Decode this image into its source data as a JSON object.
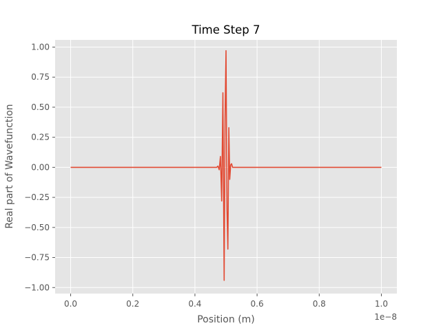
{
  "chart_data": {
    "type": "line",
    "title": "Time Step 7",
    "xlabel": "Position (m)",
    "ylabel": "Real part of Wavefunction",
    "x_offset_label": "1e−8",
    "xlim": [
      -0.05,
      1.05
    ],
    "ylim": [
      -1.05,
      1.06
    ],
    "x_ticks": [
      0.0,
      0.2,
      0.4,
      0.6,
      0.8,
      1.0
    ],
    "x_tick_labels": [
      "0.0",
      "0.2",
      "0.4",
      "0.6",
      "0.8",
      "1.0"
    ],
    "y_ticks": [
      1.0,
      0.75,
      0.5,
      0.25,
      0.0,
      -0.25,
      -0.5,
      -0.75,
      -1.0
    ],
    "y_tick_labels": [
      "1.00",
      "0.75",
      "0.50",
      "0.25",
      "0.00",
      "−0.25",
      "−0.50",
      "−0.75",
      "−1.00"
    ],
    "grid": true,
    "style": "ggplot",
    "colors": {
      "line": "#E24A33",
      "background": "#E5E5E5",
      "grid": "#FFFFFF",
      "text": "#555555"
    },
    "series": [
      {
        "x": [
          0.0,
          0.46,
          0.47,
          0.474,
          0.478,
          0.482,
          0.486,
          0.49,
          0.494,
          0.497,
          0.5,
          0.503,
          0.506,
          0.509,
          0.512,
          0.515,
          0.518,
          0.521,
          0.524,
          0.527,
          0.53,
          0.535,
          1.0
        ],
        "y": [
          0.0,
          0.0,
          0.0,
          0.01,
          -0.02,
          0.09,
          -0.28,
          0.62,
          -0.94,
          0.4,
          0.97,
          -0.35,
          -0.68,
          0.33,
          -0.1,
          0.02,
          0.03,
          0.0,
          0.0,
          0.0,
          0.0,
          0.0,
          0.0
        ]
      }
    ]
  }
}
